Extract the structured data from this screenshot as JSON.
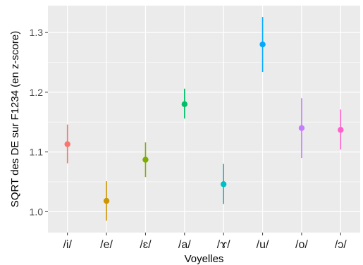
{
  "chart_data": {
    "type": "scatter",
    "xlabel": "Voyelles",
    "ylabel": "SQRT des DE sur F1234 (en z-score)",
    "ylim": [
      0.965,
      1.345
    ],
    "yticks": [
      1.0,
      1.1,
      1.2,
      1.3
    ],
    "ytick_labels": [
      "1.0",
      "1.1",
      "1.2",
      "1.3"
    ],
    "grid": true,
    "background": "#ebebeb",
    "categories": [
      "/i/",
      "/e/",
      "/ɛ/",
      "/a/",
      "/ɤ/",
      "/u/",
      "/o/",
      "/ɔ/"
    ],
    "points": [
      {
        "category": "/i/",
        "y": 1.113,
        "ymin": 1.081,
        "ymax": 1.146,
        "color": "#F8766D"
      },
      {
        "category": "/e/",
        "y": 1.018,
        "ymin": 0.985,
        "ymax": 1.051,
        "color": "#CD9600"
      },
      {
        "category": "/ɛ/",
        "y": 1.087,
        "ymin": 1.058,
        "ymax": 1.116,
        "color": "#7CAE00"
      },
      {
        "category": "/a/",
        "y": 1.18,
        "ymin": 1.156,
        "ymax": 1.206,
        "color": "#00BE67"
      },
      {
        "category": "/ɤ/",
        "y": 1.046,
        "ymin": 1.013,
        "ymax": 1.08,
        "color": "#00BFC4"
      },
      {
        "category": "/u/",
        "y": 1.28,
        "ymin": 1.234,
        "ymax": 1.326,
        "color": "#00A9FF"
      },
      {
        "category": "/o/",
        "y": 1.14,
        "ymin": 1.09,
        "ymax": 1.19,
        "color": "#C77CFF"
      },
      {
        "category": "/ɔ/",
        "y": 1.137,
        "ymin": 1.104,
        "ymax": 1.171,
        "color": "#FF61CC"
      }
    ]
  }
}
